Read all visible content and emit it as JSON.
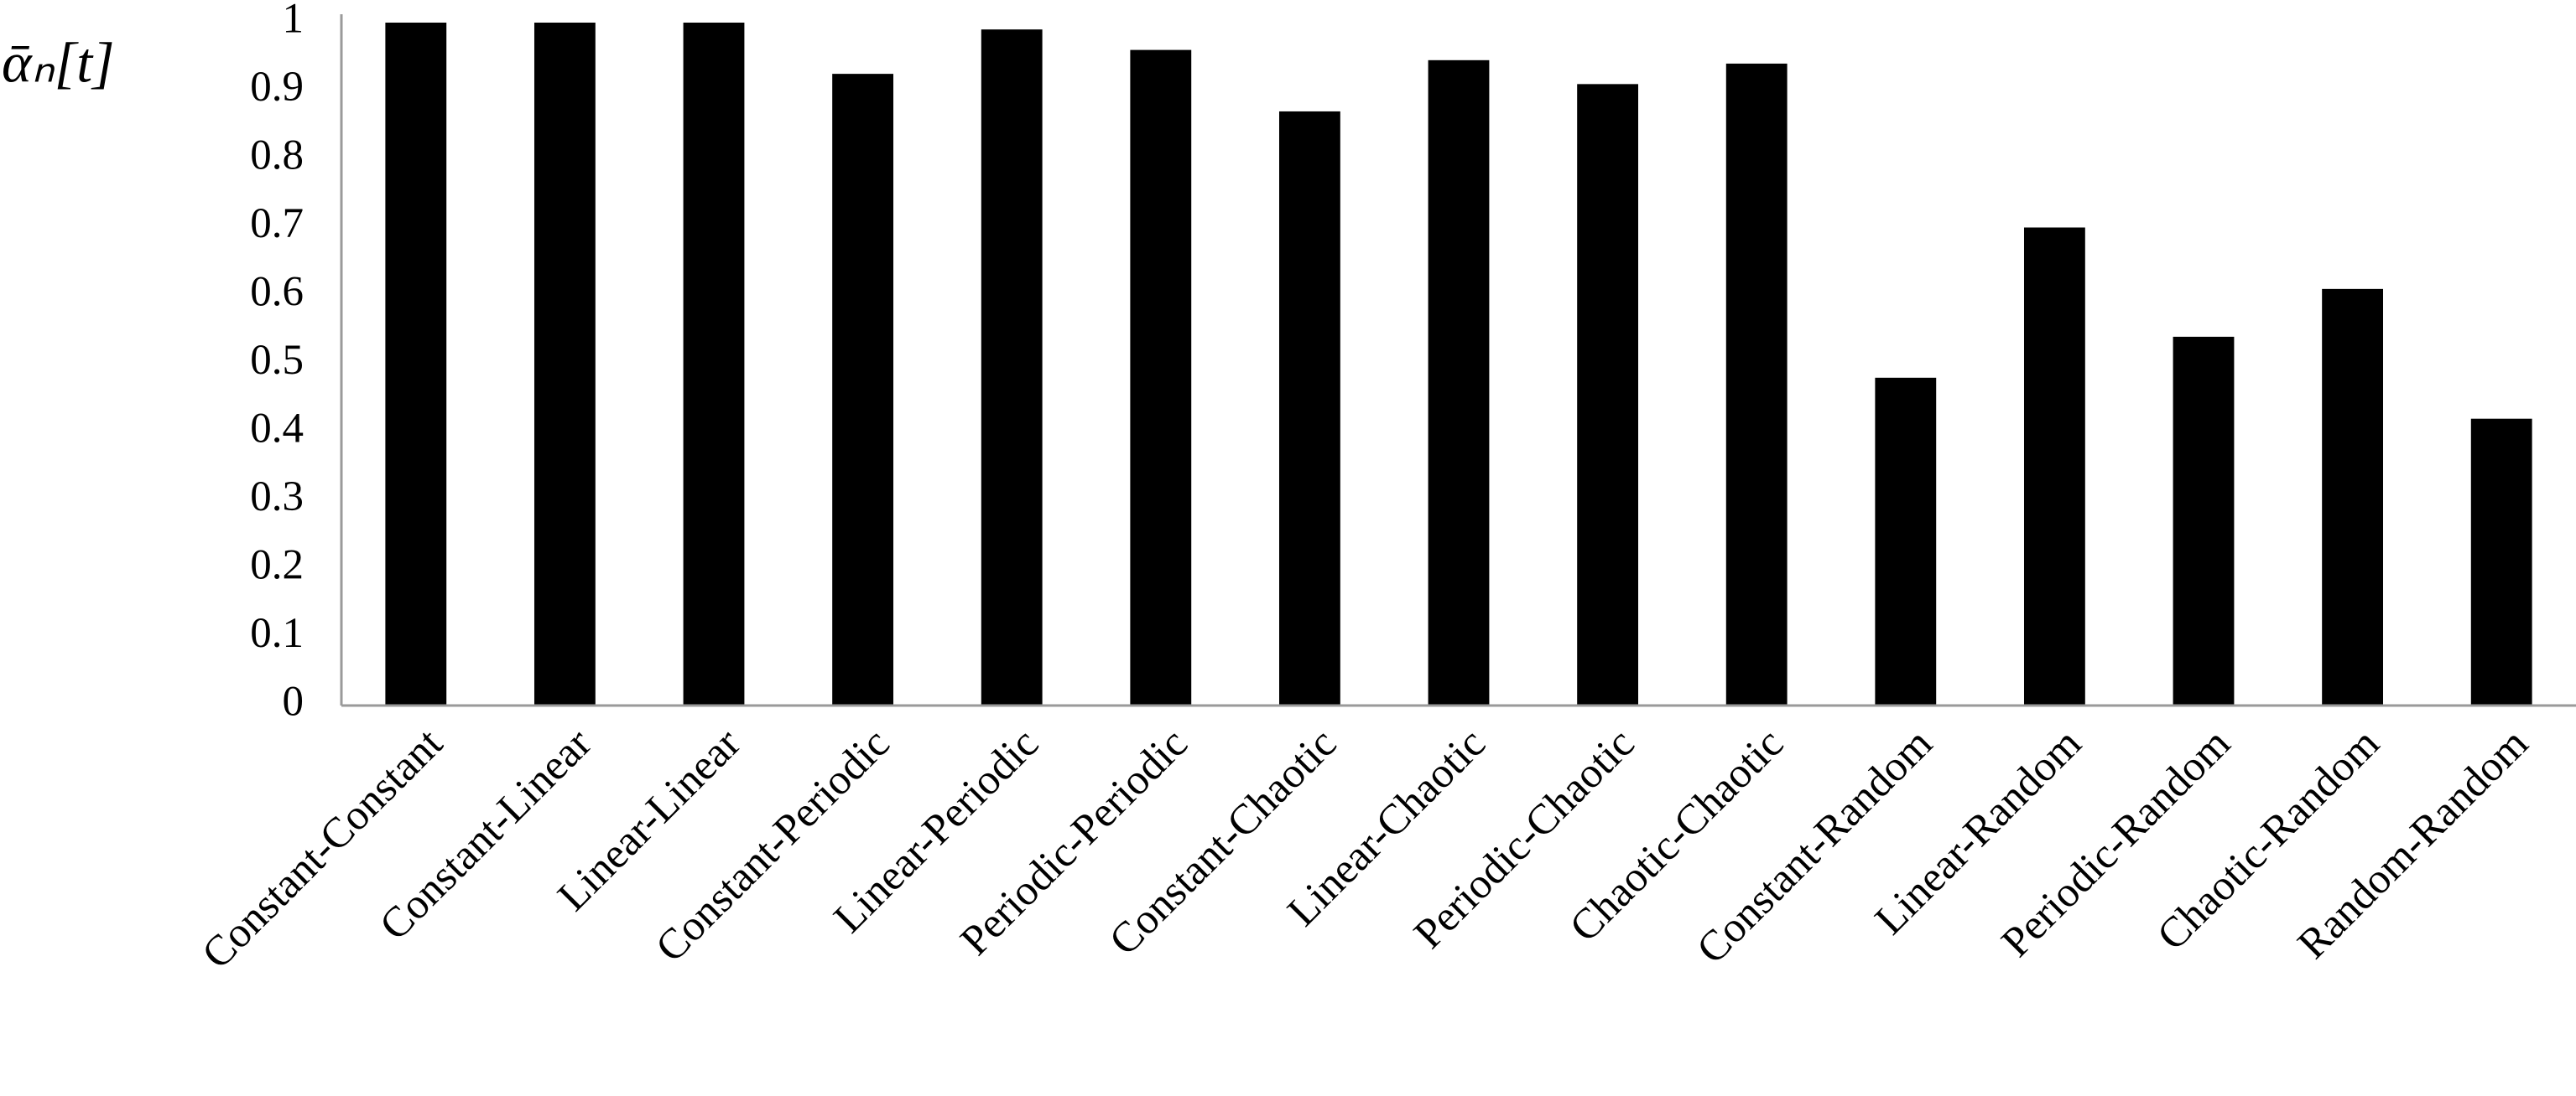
{
  "chart_data": {
    "type": "bar",
    "y_label": "ᾱₙ[t]",
    "categories": [
      "Constant-Constant",
      "Constant-Linear",
      "Linear-Linear",
      "Constant-Periodic",
      "Linear-Periodic",
      "Periodic-Periodic",
      "Constant-Chaotic",
      "Linear-Chaotic",
      "Periodic-Chaotic",
      "Chaotic-Chaotic",
      "Constant-Random",
      "Linear-Random",
      "Periodic-Random",
      "Chaotic-Random",
      "Random-Random"
    ],
    "values": [
      1.0,
      1.0,
      1.0,
      0.925,
      0.99,
      0.96,
      0.87,
      0.945,
      0.91,
      0.94,
      0.48,
      0.7,
      0.54,
      0.61,
      0.42
    ],
    "color": "#000000",
    "ylim": [
      0,
      1
    ],
    "yticks": [
      0,
      0.1,
      0.2,
      0.3,
      0.4,
      0.5,
      0.6,
      0.7,
      0.8,
      0.9,
      1
    ],
    "grid": false
  }
}
